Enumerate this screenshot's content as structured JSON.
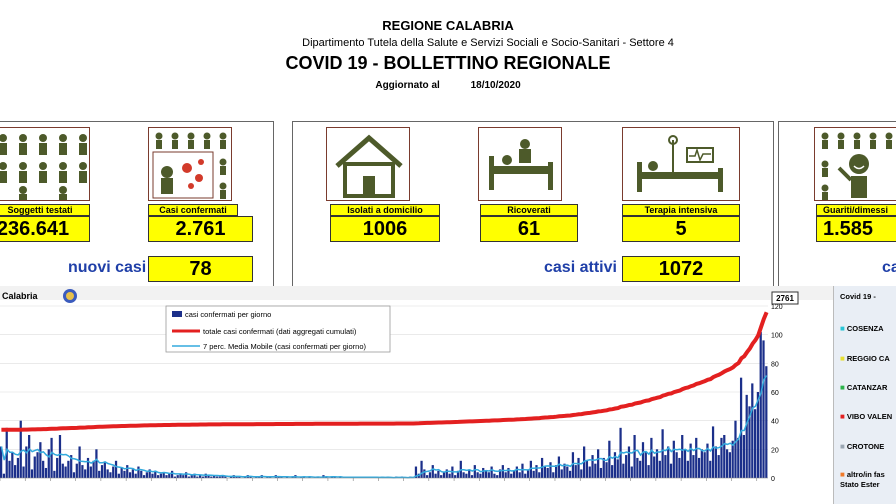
{
  "header": {
    "region": "REGIONE CALABRIA",
    "department": "Dipartimento Tutela della Salute e Servizi Sociali e Socio-Sanitari - Settore 4",
    "title": "COVID 19 - BOLLETTINO REGIONALE",
    "updated_label": "Aggiornato al",
    "updated_date": "18/10/2020"
  },
  "stats": {
    "tested": {
      "label": "Soggetti testati",
      "value": "236.641"
    },
    "confirmed": {
      "label": "Casi confermati",
      "value": "2.761"
    },
    "new_cases": {
      "label": "nuovi casi",
      "value": "78"
    },
    "home_isolation": {
      "label": "Isolati a domicilio",
      "value": "1006"
    },
    "hospitalized": {
      "label": "Ricoverati",
      "value": "61"
    },
    "intensive_care": {
      "label": "Terapia intensiva",
      "value": "5"
    },
    "active_cases": {
      "label": "casi attivi",
      "value": "1072"
    },
    "recovered": {
      "label": "Guariti/dimessi",
      "value": "1.585"
    },
    "deaths_caption": "ca"
  },
  "chart_panel": {
    "region_label": "Calabria",
    "total_flag": "2761",
    "right_title": "Covid 19 -"
  },
  "province_legend": [
    {
      "name": "COSENZA",
      "color": "#29c5d6"
    },
    {
      "name": "REGGIO CA",
      "color": "#e8e030"
    },
    {
      "name": "CATANZAR",
      "color": "#2cb34a"
    },
    {
      "name": "VIBO VALEN",
      "color": "#e32020"
    },
    {
      "name": "CROTONE",
      "color": "#9aa6b2"
    },
    {
      "name": "altro/in fas",
      "color": "#f07a2a"
    },
    {
      "name": "Stato Ester",
      "color": ""
    }
  ],
  "chart_data": {
    "type": "bar",
    "series": [
      {
        "name": "casi confermati per giorno",
        "kind": "bar",
        "color": "#1b2f8a"
      },
      {
        "name": "totale casi confermati (dati aggregati cumulati)",
        "kind": "line",
        "color": "#e32020"
      },
      {
        "name": "7 perc. Media Mobile (casi confermati per giorno)",
        "kind": "line",
        "color": "#33aadd"
      }
    ],
    "y_right_ticks": [
      0,
      20,
      40,
      60,
      80,
      100,
      120
    ],
    "ylim": [
      0,
      120
    ],
    "last_total": 2761,
    "daily": [
      22,
      3,
      35,
      12,
      18,
      9,
      14,
      40,
      8,
      22,
      30,
      6,
      15,
      18,
      25,
      12,
      7,
      20,
      28,
      5,
      14,
      30,
      10,
      8,
      12,
      16,
      4,
      10,
      22,
      9,
      6,
      14,
      8,
      12,
      20,
      5,
      9,
      11,
      6,
      4,
      8,
      12,
      3,
      7,
      5,
      9,
      4,
      6,
      3,
      8,
      5,
      2,
      4,
      6,
      3,
      5,
      2,
      3,
      4,
      2,
      3,
      5,
      1,
      2,
      3,
      2,
      4,
      1,
      2,
      3,
      1,
      2,
      1,
      3,
      2,
      1,
      2,
      1,
      1,
      2,
      1,
      0,
      1,
      2,
      1,
      1,
      0,
      1,
      2,
      1,
      0,
      1,
      1,
      2,
      0,
      1,
      1,
      0,
      2,
      1,
      1,
      0,
      1,
      0,
      1,
      2,
      0,
      1,
      1,
      0,
      1,
      0,
      1,
      1,
      0,
      2,
      1,
      0,
      1,
      1,
      0,
      1,
      0,
      1,
      0,
      1,
      1,
      0,
      1,
      0,
      1,
      0,
      1,
      1,
      0,
      0,
      1,
      0,
      1,
      0,
      0,
      1,
      0,
      1,
      0,
      0,
      1,
      0,
      8,
      3,
      12,
      6,
      2,
      4,
      9,
      3,
      5,
      2,
      4,
      6,
      3,
      8,
      2,
      5,
      12,
      4,
      3,
      6,
      2,
      9,
      4,
      3,
      7,
      5,
      4,
      8,
      3,
      2,
      6,
      9,
      4,
      7,
      3,
      5,
      8,
      4,
      10,
      3,
      6,
      12,
      5,
      9,
      4,
      14,
      8,
      7,
      11,
      4,
      9,
      15,
      6,
      10,
      8,
      5,
      18,
      9,
      14,
      6,
      22,
      12,
      8,
      16,
      10,
      20,
      7,
      14,
      11,
      26,
      9,
      18,
      13,
      35,
      10,
      16,
      22,
      8,
      30,
      14,
      12,
      25,
      18,
      9,
      28,
      15,
      20,
      12,
      34,
      16,
      22,
      10,
      26,
      18,
      14,
      30,
      20,
      12,
      24,
      16,
      28,
      14,
      20,
      18,
      24,
      12,
      36,
      22,
      16,
      28,
      30,
      20,
      18,
      26,
      40,
      28,
      70,
      30,
      58,
      50,
      66,
      48,
      60,
      102,
      96,
      78
    ],
    "cumulative_start": 1,
    "cumulative_end": 2761
  }
}
